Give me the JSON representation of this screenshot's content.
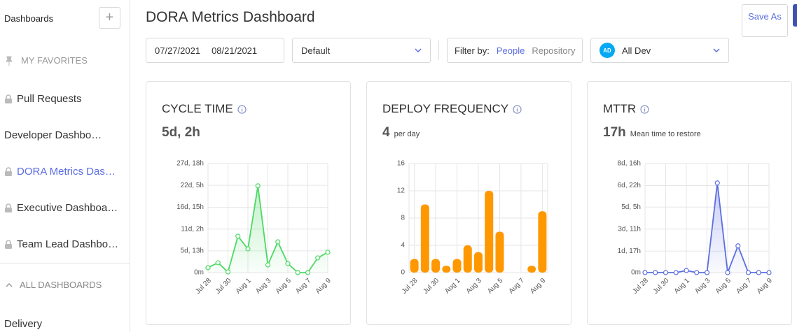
{
  "sidebar": {
    "header": "Dashboards",
    "favorites_label": "MY FAVORITES",
    "items": [
      {
        "label": "Pull Requests",
        "locked": true,
        "active": false
      },
      {
        "label": "Developer Dashbo…",
        "locked": false,
        "active": false
      },
      {
        "label": "DORA Metrics Das…",
        "locked": true,
        "active": true
      },
      {
        "label": "Executive Dashboa…",
        "locked": true,
        "active": false
      },
      {
        "label": "Team Lead Dashbo…",
        "locked": true,
        "active": false
      }
    ],
    "all_label": "ALL DASHBOARDS",
    "delivery": "Delivery"
  },
  "header": {
    "title": "DORA Metrics Dashboard",
    "save_button": "Save As"
  },
  "filters": {
    "date_from": "07/27/2021",
    "date_to": "08/21/2021",
    "preset": "Default",
    "filter_label": "Filter by:",
    "filter_people": "People",
    "filter_repository": "Repository",
    "avatar": "AD",
    "developer": "All Dev"
  },
  "cards": [
    {
      "title": "CYCLE TIME",
      "value": "5d, 2h",
      "caption": null,
      "chart": {
        "type": "line",
        "color": "#4cd964",
        "categories": [
          "Jul 28",
          null,
          "Jul 30",
          null,
          "Aug 1",
          null,
          "Aug 3",
          null,
          "Aug 5",
          null,
          "Aug 7",
          null,
          "Aug 9"
        ],
        "values": [
          30,
          60,
          4,
          222,
          145,
          530,
          47,
          188,
          55,
          0,
          0,
          90,
          124
        ],
        "ylim": [
          0,
          666
        ],
        "yticks": [
          {
            "value": 0,
            "label": "0m"
          },
          {
            "value": 133,
            "label": "5d, 13h"
          },
          {
            "value": 266,
            "label": "11d, 2h"
          },
          {
            "value": 399,
            "label": "16d, 15h"
          },
          {
            "value": 533,
            "label": "22d, 5h"
          },
          {
            "value": 666,
            "label": "27d, 18h"
          }
        ]
      }
    },
    {
      "title": "DEPLOY FREQUENCY",
      "value": "4",
      "caption": "per day",
      "chart": {
        "type": "bar",
        "color": "#ff9800",
        "categories": [
          "Jul 28",
          null,
          "Jul 30",
          null,
          "Aug 1",
          null,
          "Aug 3",
          null,
          "Aug 5",
          null,
          "Aug 7",
          null,
          "Aug 9"
        ],
        "values": [
          2,
          10,
          2,
          1,
          2,
          4,
          3,
          12,
          6,
          0,
          0,
          1,
          9
        ],
        "ylim": [
          0,
          16
        ],
        "yticks": [
          0,
          4,
          8,
          12,
          16
        ]
      }
    },
    {
      "title": "MTTR",
      "value": "17h",
      "caption": "Mean time to restore",
      "chart": {
        "type": "line",
        "color": "#5b6ee1",
        "categories": [
          "Jul 28",
          null,
          "Jul 30",
          null,
          "Aug 1",
          null,
          "Aug 3",
          null,
          "Aug 5",
          null,
          "Aug 7",
          null,
          "Aug 9"
        ],
        "values": [
          0,
          0,
          0,
          0,
          4,
          0,
          0,
          171,
          0,
          51,
          0,
          0,
          0
        ],
        "ylim": [
          0,
          208
        ],
        "yticks": [
          {
            "value": 0,
            "label": "0m"
          },
          {
            "value": 41,
            "label": "1d, 17h"
          },
          {
            "value": 83,
            "label": "3d, 11h"
          },
          {
            "value": 125,
            "label": "5d, 5h"
          },
          {
            "value": 166,
            "label": "6d, 22h"
          },
          {
            "value": 208,
            "label": "8d, 16h"
          }
        ]
      }
    }
  ]
}
